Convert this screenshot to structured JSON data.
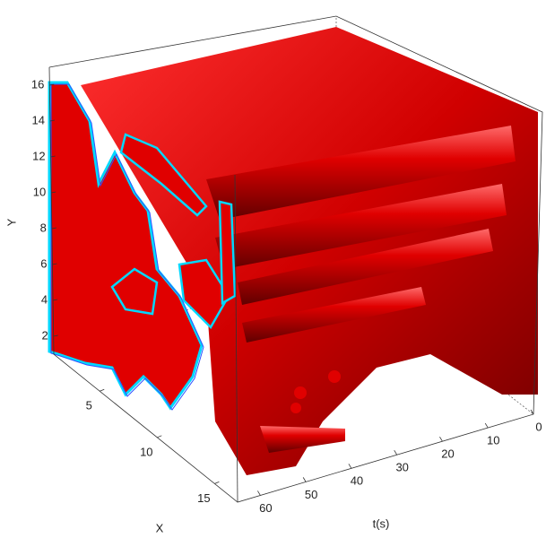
{
  "chart_data": {
    "type": "isosurface",
    "xlabel": "X",
    "ylabel": "Y",
    "zlabel": "t(s)",
    "xlim": [
      1,
      17
    ],
    "xticks": [
      5,
      10,
      15
    ],
    "ylim": [
      1,
      17
    ],
    "yticks": [
      2,
      4,
      6,
      8,
      10,
      12,
      14,
      16
    ],
    "zlim": [
      0,
      65
    ],
    "zticks": [
      0,
      10,
      20,
      30,
      40,
      50,
      60
    ],
    "color": "#e00000"
  }
}
